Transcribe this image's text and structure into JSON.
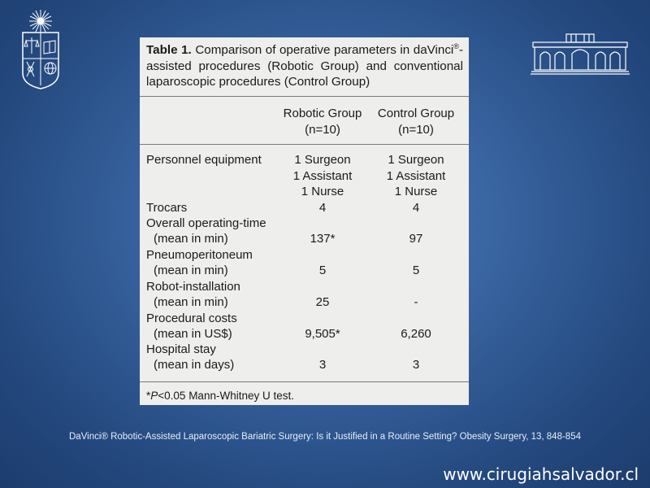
{
  "table": {
    "label": "Table 1.",
    "caption_pre": " Comparison of operative parameters in daVinci",
    "caption_sup": "®",
    "caption_post": "-assisted procedures (Robotic Group) and conventional laparoscopic procedures (Control Group)",
    "columns": [
      {
        "name": "Robotic Group",
        "n": "(n=10)"
      },
      {
        "name": "Control Group",
        "n": "(n=10)"
      }
    ],
    "personnel": {
      "label": "Personnel equipment",
      "robotic": [
        "1 Surgeon",
        "1 Assistant",
        "1 Nurse"
      ],
      "control": [
        "1 Surgeon",
        "1 Assistant",
        "1 Nurse"
      ]
    },
    "rows": [
      {
        "label": "Trocars",
        "sub": "",
        "robotic": "4",
        "control": "4"
      },
      {
        "label": "Overall operating-time",
        "sub": "(mean in min)",
        "robotic": "137*",
        "control": "97"
      },
      {
        "label": "Pneumoperitoneum",
        "sub": "(mean in min)",
        "robotic": "5",
        "control": "5"
      },
      {
        "label": "Robot-installation",
        "sub": "(mean in min)",
        "robotic": "25",
        "control": "-"
      },
      {
        "label": "Procedural costs",
        "sub": "(mean in US$)",
        "robotic": "9,505*",
        "control": "6,260"
      },
      {
        "label": "Hospital stay",
        "sub": "(mean in days)",
        "robotic": "3",
        "control": "3"
      }
    ],
    "footnote_star": "*",
    "footnote_p": "P",
    "footnote_rest": "<0.05 Mann-Whitney U test."
  },
  "reference": "DaVinci® Robotic-Assisted Laparoscopic Bariatric Surgery: Is it Justified in a Routine Setting? Obesity Surgery, 13, 848-854",
  "website": "www.cirugiahsalvador.cl",
  "colors": {
    "background": "#2f5a94",
    "table_bg": "#eeeeec",
    "logo": "#ffffff"
  }
}
